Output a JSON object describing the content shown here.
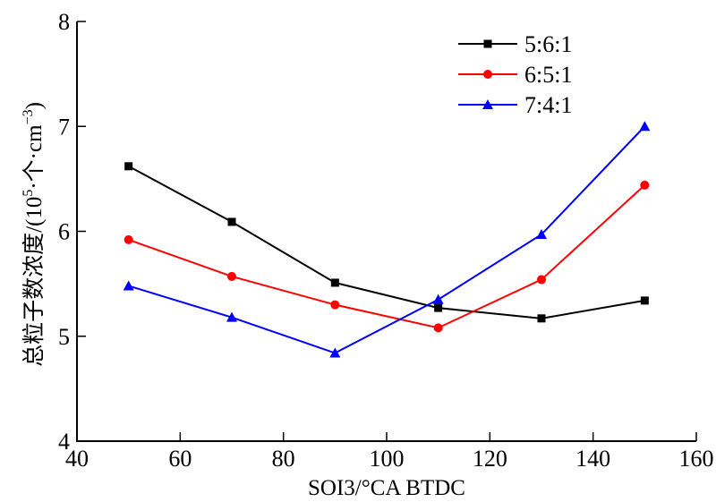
{
  "chart_data": {
    "type": "line",
    "title": "",
    "xlabel": "SOI3/°CA BTDC",
    "ylabel": "总粒子数浓度/(10⁵·个·cm⁻³)",
    "ylabel_parts": {
      "main": "总粒子数浓度/(10",
      "sup1": "5",
      "mid": "·个·cm",
      "sup2": "−3",
      "end": ")"
    },
    "xlim": [
      40,
      160
    ],
    "ylim": [
      4,
      8
    ],
    "xticks": [
      40,
      60,
      80,
      100,
      120,
      140,
      160
    ],
    "yticks": [
      4,
      5,
      6,
      7,
      8
    ],
    "grid": false,
    "legend_position": "top-right",
    "x": [
      50,
      70,
      90,
      110,
      130,
      150
    ],
    "series": [
      {
        "name": "5:6:1",
        "color": "#000000",
        "marker": "square",
        "values": [
          6.62,
          6.09,
          5.51,
          5.27,
          5.17,
          5.34
        ]
      },
      {
        "name": "6:5:1",
        "color": "#ff0000",
        "marker": "circle",
        "values": [
          5.92,
          5.57,
          5.3,
          5.08,
          5.54,
          6.44
        ]
      },
      {
        "name": "7:4:1",
        "color": "#0000ff",
        "marker": "triangle",
        "values": [
          5.48,
          5.18,
          4.84,
          5.35,
          5.97,
          7.0
        ]
      }
    ]
  }
}
